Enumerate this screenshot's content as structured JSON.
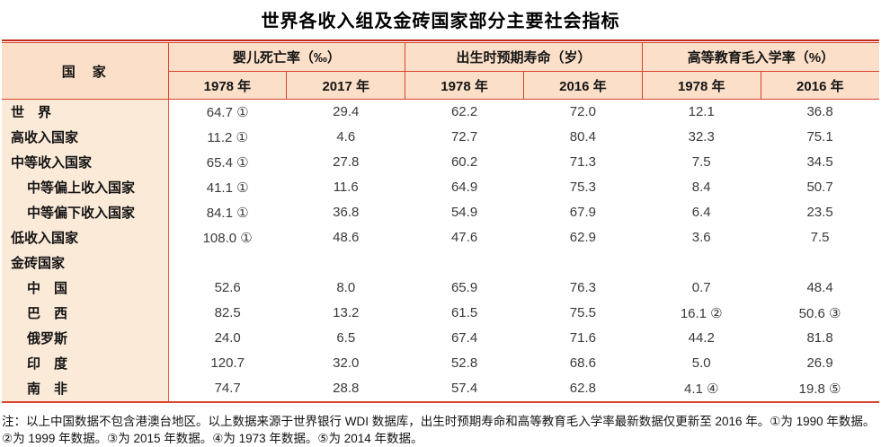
{
  "title": "世界各收入组及金砖国家部分主要社会指标",
  "colors": {
    "rule_red": "#d8432c",
    "heavy_top_rule": "#bf2b1d",
    "header_bg": "#fbdfc8",
    "label_column_bg": "#fcead9"
  },
  "table": {
    "country_header": "国　家",
    "groups": [
      {
        "label": "婴儿死亡率（‰）",
        "years": [
          "1978 年",
          "2017 年"
        ]
      },
      {
        "label": "出生时预期寿命（岁）",
        "years": [
          "1978 年",
          "2016 年"
        ]
      },
      {
        "label": "高等教育毛入学率（%）",
        "years": [
          "1978 年",
          "2016 年"
        ]
      }
    ],
    "rows": [
      {
        "label": "世　界",
        "indent": false,
        "values": [
          "64.7 ①",
          "29.4",
          "62.2",
          "72.0",
          "12.1",
          "36.8"
        ]
      },
      {
        "label": "高收入国家",
        "indent": false,
        "values": [
          "11.2 ①",
          "4.6",
          "72.7",
          "80.4",
          "32.3",
          "75.1"
        ]
      },
      {
        "label": "中等收入国家",
        "indent": false,
        "values": [
          "65.4 ①",
          "27.8",
          "60.2",
          "71.3",
          "7.5",
          "34.5"
        ]
      },
      {
        "label": "中等偏上收入国家",
        "indent": true,
        "values": [
          "41.1 ①",
          "11.6",
          "64.9",
          "75.3",
          "8.4",
          "50.7"
        ]
      },
      {
        "label": "中等偏下收入国家",
        "indent": true,
        "values": [
          "84.1 ①",
          "36.8",
          "54.9",
          "67.9",
          "6.4",
          "23.5"
        ]
      },
      {
        "label": "低收入国家",
        "indent": false,
        "values": [
          "108.0 ①",
          "48.6",
          "47.6",
          "62.9",
          "3.6",
          "7.5"
        ]
      },
      {
        "label": "金砖国家",
        "indent": false,
        "values": [
          "",
          "",
          "",
          "",
          "",
          ""
        ]
      },
      {
        "label": "中　国",
        "indent": true,
        "values": [
          "52.6",
          "8.0",
          "65.9",
          "76.3",
          "0.7",
          "48.4"
        ]
      },
      {
        "label": "巴　西",
        "indent": true,
        "values": [
          "82.5",
          "13.2",
          "61.5",
          "75.5",
          "16.1 ②",
          "50.6 ③"
        ]
      },
      {
        "label": "俄罗斯",
        "indent": true,
        "values": [
          "24.0",
          "6.5",
          "67.4",
          "71.6",
          "44.2",
          "81.8"
        ]
      },
      {
        "label": "印　度",
        "indent": true,
        "values": [
          "120.7",
          "32.0",
          "52.8",
          "68.6",
          "5.0",
          "26.9"
        ]
      },
      {
        "label": "南　非",
        "indent": true,
        "values": [
          "74.7",
          "28.8",
          "57.4",
          "62.8",
          "4.1 ④",
          "19.8 ⑤"
        ]
      }
    ]
  },
  "note": {
    "line1": "注：以上中国数据不包含港澳台地区。以上数据来源于世界银行 WDI 数据库，出生时预期寿命和高等教育毛入学率最新数据仅更新至 2016 年。①为 1990 年数据。",
    "line2": "②为 1999 年数据。③为 2015 年数据。④为 1973 年数据。⑤为 2014 年数据。"
  }
}
